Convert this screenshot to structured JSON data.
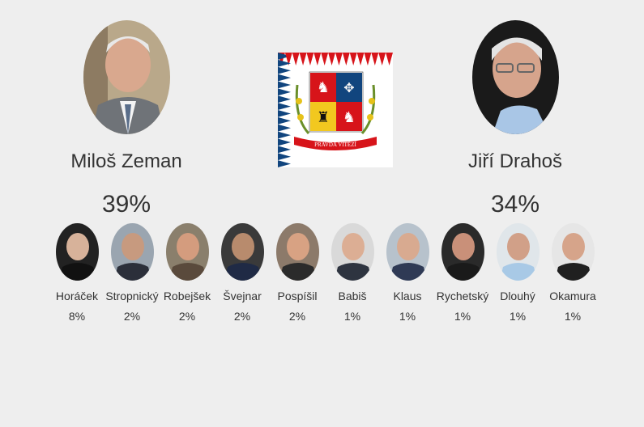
{
  "colors": {
    "background": "#eeeeee",
    "text": "#333333",
    "flag_blue": "#11457e",
    "flag_red": "#d7141a",
    "flag_white": "#ffffff"
  },
  "emblem": {
    "motto": "PRAVDA VÍTĚZÍ",
    "icon": "presidential-standard-icon"
  },
  "chart_data": {
    "type": "bar",
    "unit": "%",
    "categories": [
      "Miloš Zeman",
      "Jiří Drahoš",
      "Horáček",
      "Stropnický",
      "Robejšek",
      "Švejnar",
      "Pospíšil",
      "Babiš",
      "Klaus",
      "Rychetský",
      "Dlouhý",
      "Okamura"
    ],
    "values": [
      39,
      34,
      8,
      2,
      2,
      2,
      2,
      1,
      1,
      1,
      1,
      1
    ],
    "main": [
      {
        "name": "Miloš Zeman",
        "value": 39,
        "label": "39%"
      },
      {
        "name": "Jiří Drahoš",
        "value": 34,
        "label": "34%"
      }
    ],
    "minor": [
      {
        "name": "Horáček",
        "value": 8,
        "label": "8%"
      },
      {
        "name": "Stropnický",
        "value": 2,
        "label": "2%"
      },
      {
        "name": "Robejšek",
        "value": 2,
        "label": "2%"
      },
      {
        "name": "Švejnar",
        "value": 2,
        "label": "2%"
      },
      {
        "name": "Pospíšil",
        "value": 2,
        "label": "2%"
      },
      {
        "name": "Babiš",
        "value": 1,
        "label": "1%"
      },
      {
        "name": "Klaus",
        "value": 1,
        "label": "1%"
      },
      {
        "name": "Rychetský",
        "value": 1,
        "label": "1%"
      },
      {
        "name": "Dlouhý",
        "value": 1,
        "label": "1%"
      },
      {
        "name": "Okamura",
        "value": 1,
        "label": "1%"
      }
    ]
  }
}
